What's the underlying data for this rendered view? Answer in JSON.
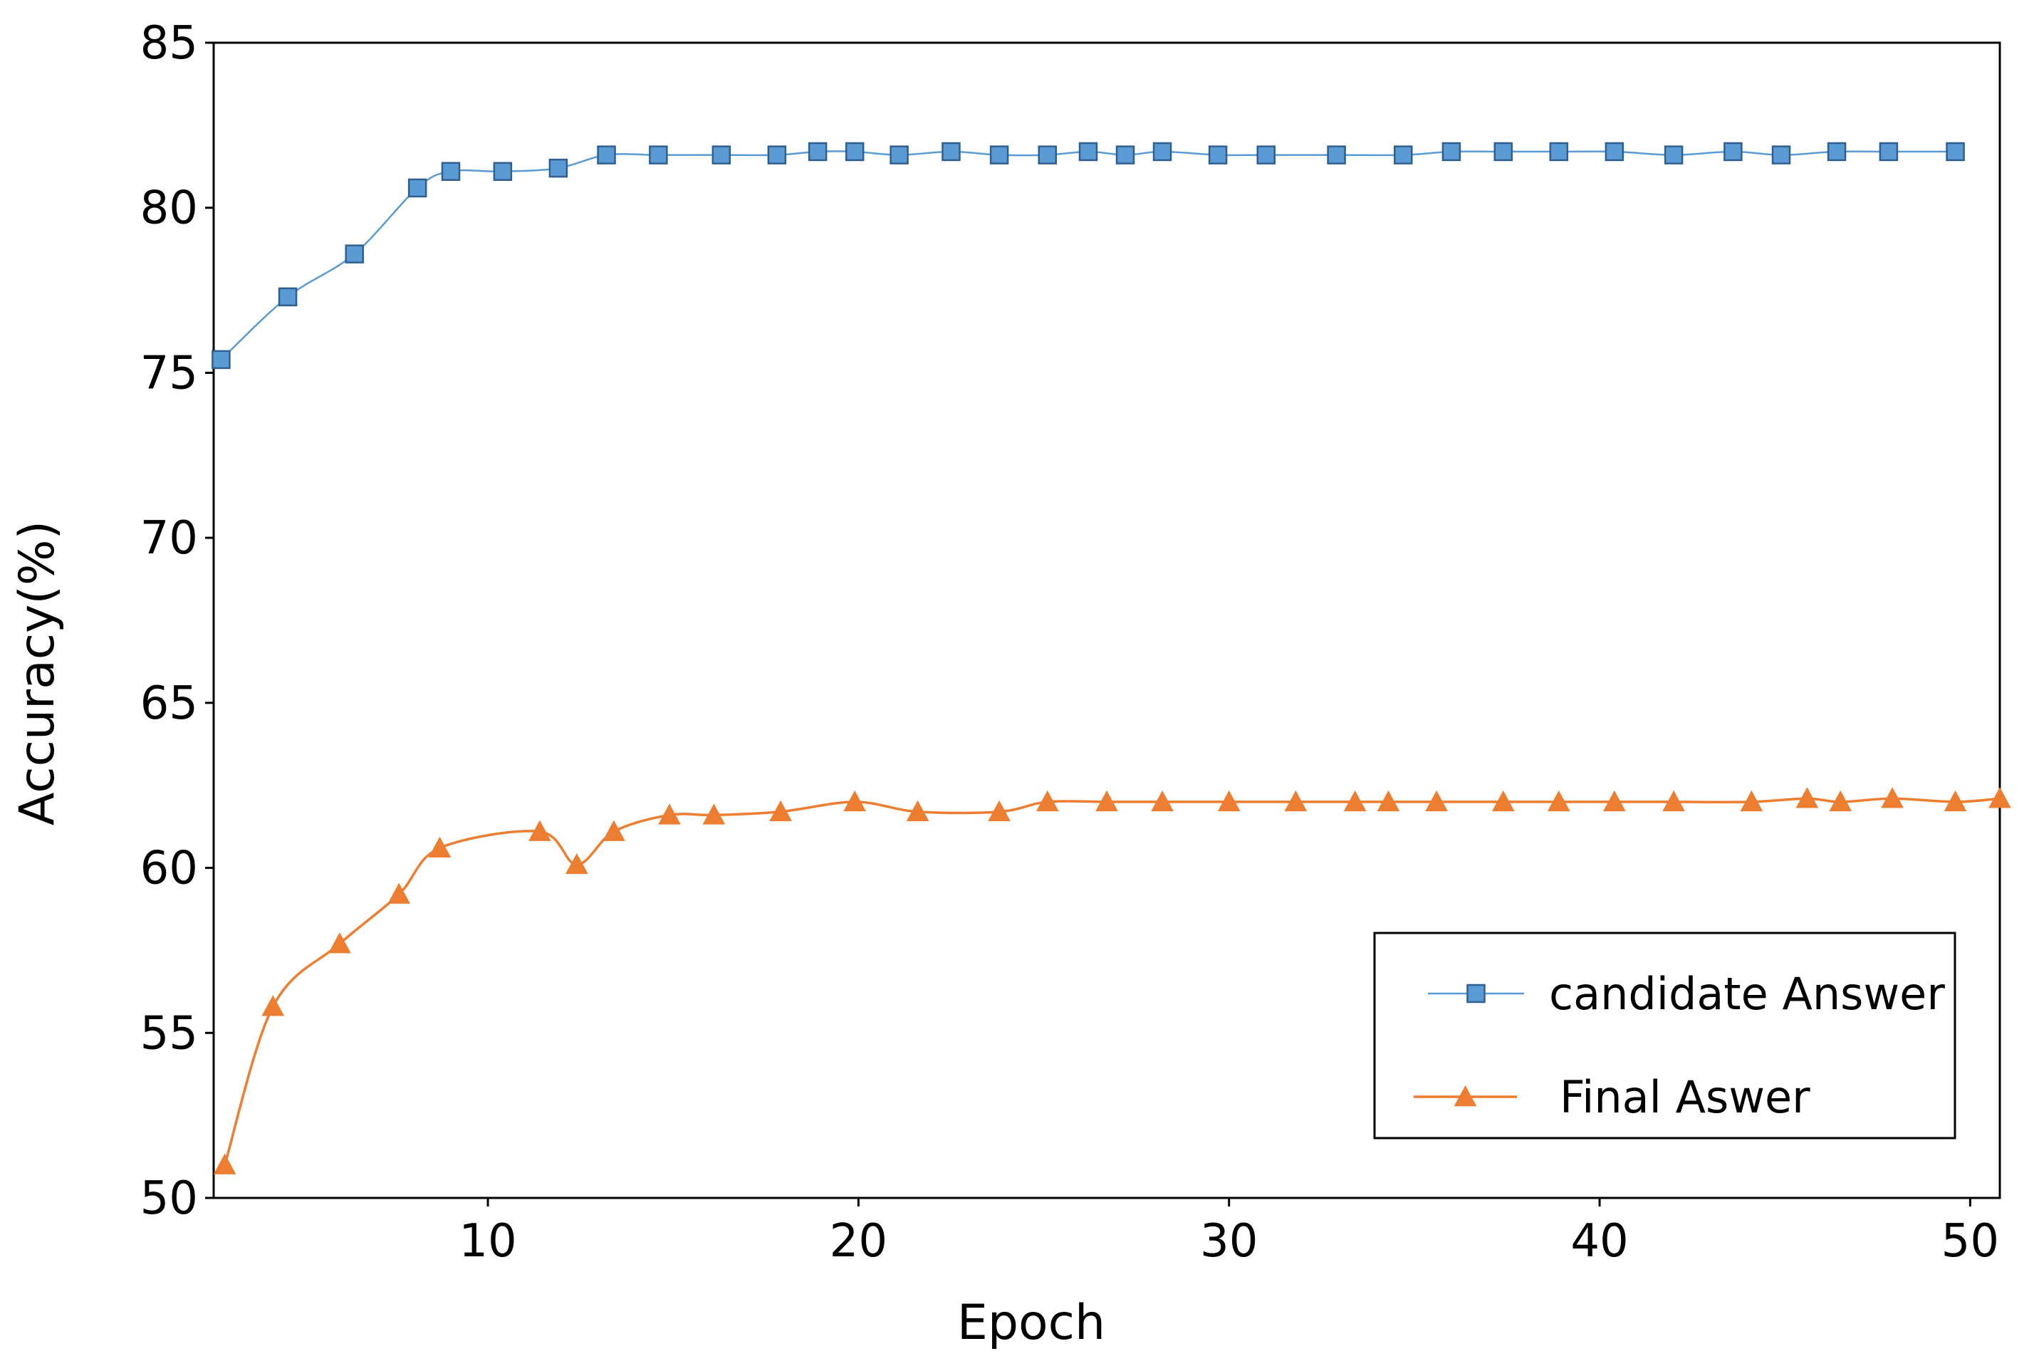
{
  "chart_data": {
    "type": "line",
    "xlabel": "Epoch",
    "ylabel": "Accuracy(%)",
    "xlim": [
      2.6,
      50.8
    ],
    "ylim": [
      50,
      85
    ],
    "x_ticks": [
      "10",
      "20",
      "30",
      "40",
      "50"
    ],
    "y_ticks": [
      "50",
      "55",
      "60",
      "65",
      "70",
      "75",
      "80",
      "85"
    ],
    "grid": false,
    "legend": "bottom-right",
    "series": [
      {
        "name": "candidate Answer",
        "color": "#5b9bd5",
        "marker": "square",
        "points": [
          [
            2.8,
            75.4
          ],
          [
            4.6,
            77.3
          ],
          [
            6.4,
            78.6
          ],
          [
            8.1,
            80.6
          ],
          [
            9.0,
            81.1
          ],
          [
            10.4,
            81.1
          ],
          [
            11.9,
            81.2
          ],
          [
            13.2,
            81.6
          ],
          [
            14.6,
            81.6
          ],
          [
            16.3,
            81.6
          ],
          [
            17.8,
            81.6
          ],
          [
            18.9,
            81.7
          ],
          [
            19.9,
            81.7
          ],
          [
            21.1,
            81.6
          ],
          [
            22.5,
            81.7
          ],
          [
            23.8,
            81.6
          ],
          [
            25.1,
            81.6
          ],
          [
            26.2,
            81.7
          ],
          [
            27.2,
            81.6
          ],
          [
            28.2,
            81.7
          ],
          [
            29.7,
            81.6
          ],
          [
            31.0,
            81.6
          ],
          [
            32.9,
            81.6
          ],
          [
            34.7,
            81.6
          ],
          [
            36.0,
            81.7
          ],
          [
            37.4,
            81.7
          ],
          [
            38.9,
            81.7
          ],
          [
            40.4,
            81.7
          ],
          [
            42.0,
            81.6
          ],
          [
            43.6,
            81.7
          ],
          [
            44.9,
            81.6
          ],
          [
            46.4,
            81.7
          ],
          [
            47.8,
            81.7
          ],
          [
            49.6,
            81.7
          ]
        ]
      },
      {
        "name": "Final Aswer",
        "color": "#ed7d31",
        "marker": "triangle",
        "points": [
          [
            2.9,
            51.0
          ],
          [
            4.2,
            55.8
          ],
          [
            6.0,
            57.7
          ],
          [
            7.6,
            59.2
          ],
          [
            8.7,
            60.6
          ],
          [
            11.4,
            61.1
          ],
          [
            12.4,
            60.1
          ],
          [
            13.4,
            61.1
          ],
          [
            14.9,
            61.6
          ],
          [
            16.1,
            61.6
          ],
          [
            17.9,
            61.7
          ],
          [
            19.9,
            62.0
          ],
          [
            21.6,
            61.7
          ],
          [
            23.8,
            61.7
          ],
          [
            25.1,
            62.0
          ],
          [
            26.7,
            62.0
          ],
          [
            28.2,
            62.0
          ],
          [
            30.0,
            62.0
          ],
          [
            31.8,
            62.0
          ],
          [
            33.4,
            62.0
          ],
          [
            34.3,
            62.0
          ],
          [
            35.6,
            62.0
          ],
          [
            37.4,
            62.0
          ],
          [
            38.9,
            62.0
          ],
          [
            40.4,
            62.0
          ],
          [
            42.0,
            62.0
          ],
          [
            44.1,
            62.0
          ],
          [
            45.6,
            62.1
          ],
          [
            46.5,
            62.0
          ],
          [
            47.9,
            62.1
          ],
          [
            49.6,
            62.0
          ],
          [
            50.8,
            62.1
          ]
        ]
      }
    ]
  }
}
